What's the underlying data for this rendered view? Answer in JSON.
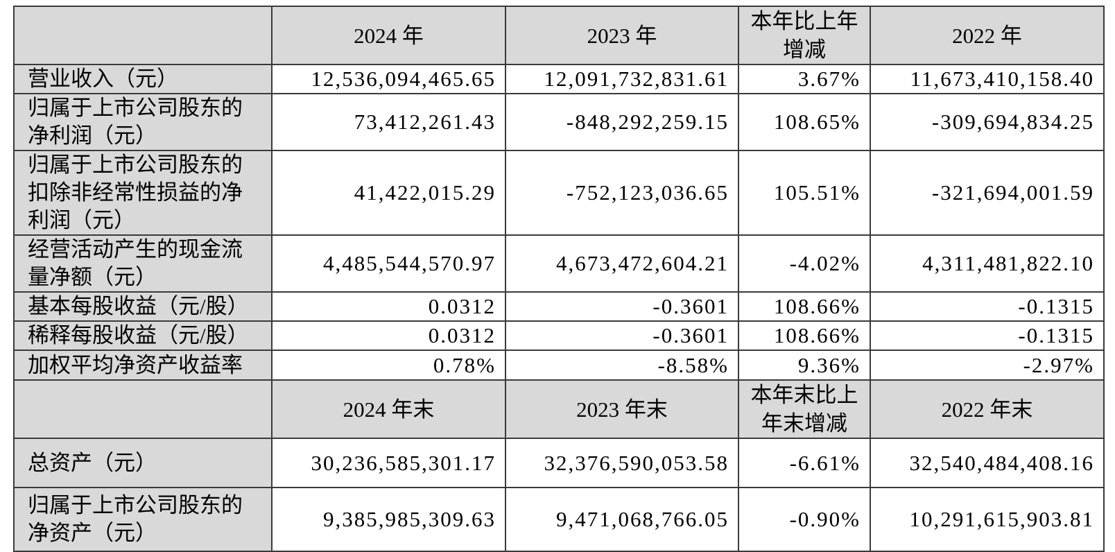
{
  "annual": {
    "corner": "",
    "headers": [
      "2024 年",
      "2023 年",
      "本年比上年增减",
      "2022 年"
    ],
    "rows": [
      {
        "label": "营业收入（元）",
        "y2024": "12,536,094,465.65",
        "y2023": "12,091,732,831.61",
        "change": "3.67%",
        "y2022": "11,673,410,158.40"
      },
      {
        "label": "归属于上市公司股东的净利润（元）",
        "y2024": "73,412,261.43",
        "y2023": "-848,292,259.15",
        "change": "108.65%",
        "y2022": "-309,694,834.25"
      },
      {
        "label": "归属于上市公司股东的扣除非经常性损益的净利润（元）",
        "y2024": "41,422,015.29",
        "y2023": "-752,123,036.65",
        "change": "105.51%",
        "y2022": "-321,694,001.59"
      },
      {
        "label": "经营活动产生的现金流量净额（元）",
        "y2024": "4,485,544,570.97",
        "y2023": "4,673,472,604.21",
        "change": "-4.02%",
        "y2022": "4,311,481,822.10"
      },
      {
        "label": "基本每股收益（元/股）",
        "y2024": "0.0312",
        "y2023": "-0.3601",
        "change": "108.66%",
        "y2022": "-0.1315"
      },
      {
        "label": "稀释每股收益（元/股）",
        "y2024": "0.0312",
        "y2023": "-0.3601",
        "change": "108.66%",
        "y2022": "-0.1315"
      },
      {
        "label": "加权平均净资产收益率",
        "y2024": "0.78%",
        "y2023": "-8.58%",
        "change": "9.36%",
        "y2022": "-2.97%"
      }
    ]
  },
  "eoy": {
    "corner": "",
    "headers": [
      "2024 年末",
      "2023 年末",
      "本年末比上年末增减",
      "2022 年末"
    ],
    "rows": [
      {
        "label": "总资产（元）",
        "y2024": "30,236,585,301.17",
        "y2023": "32,376,590,053.58",
        "change": "-6.61%",
        "y2022": "32,540,484,408.16"
      },
      {
        "label": "归属于上市公司股东的净资产（元）",
        "y2024": "9,385,985,309.63",
        "y2023": "9,471,068,766.05",
        "change": "-0.90%",
        "y2022": "10,291,615,903.81"
      }
    ]
  }
}
